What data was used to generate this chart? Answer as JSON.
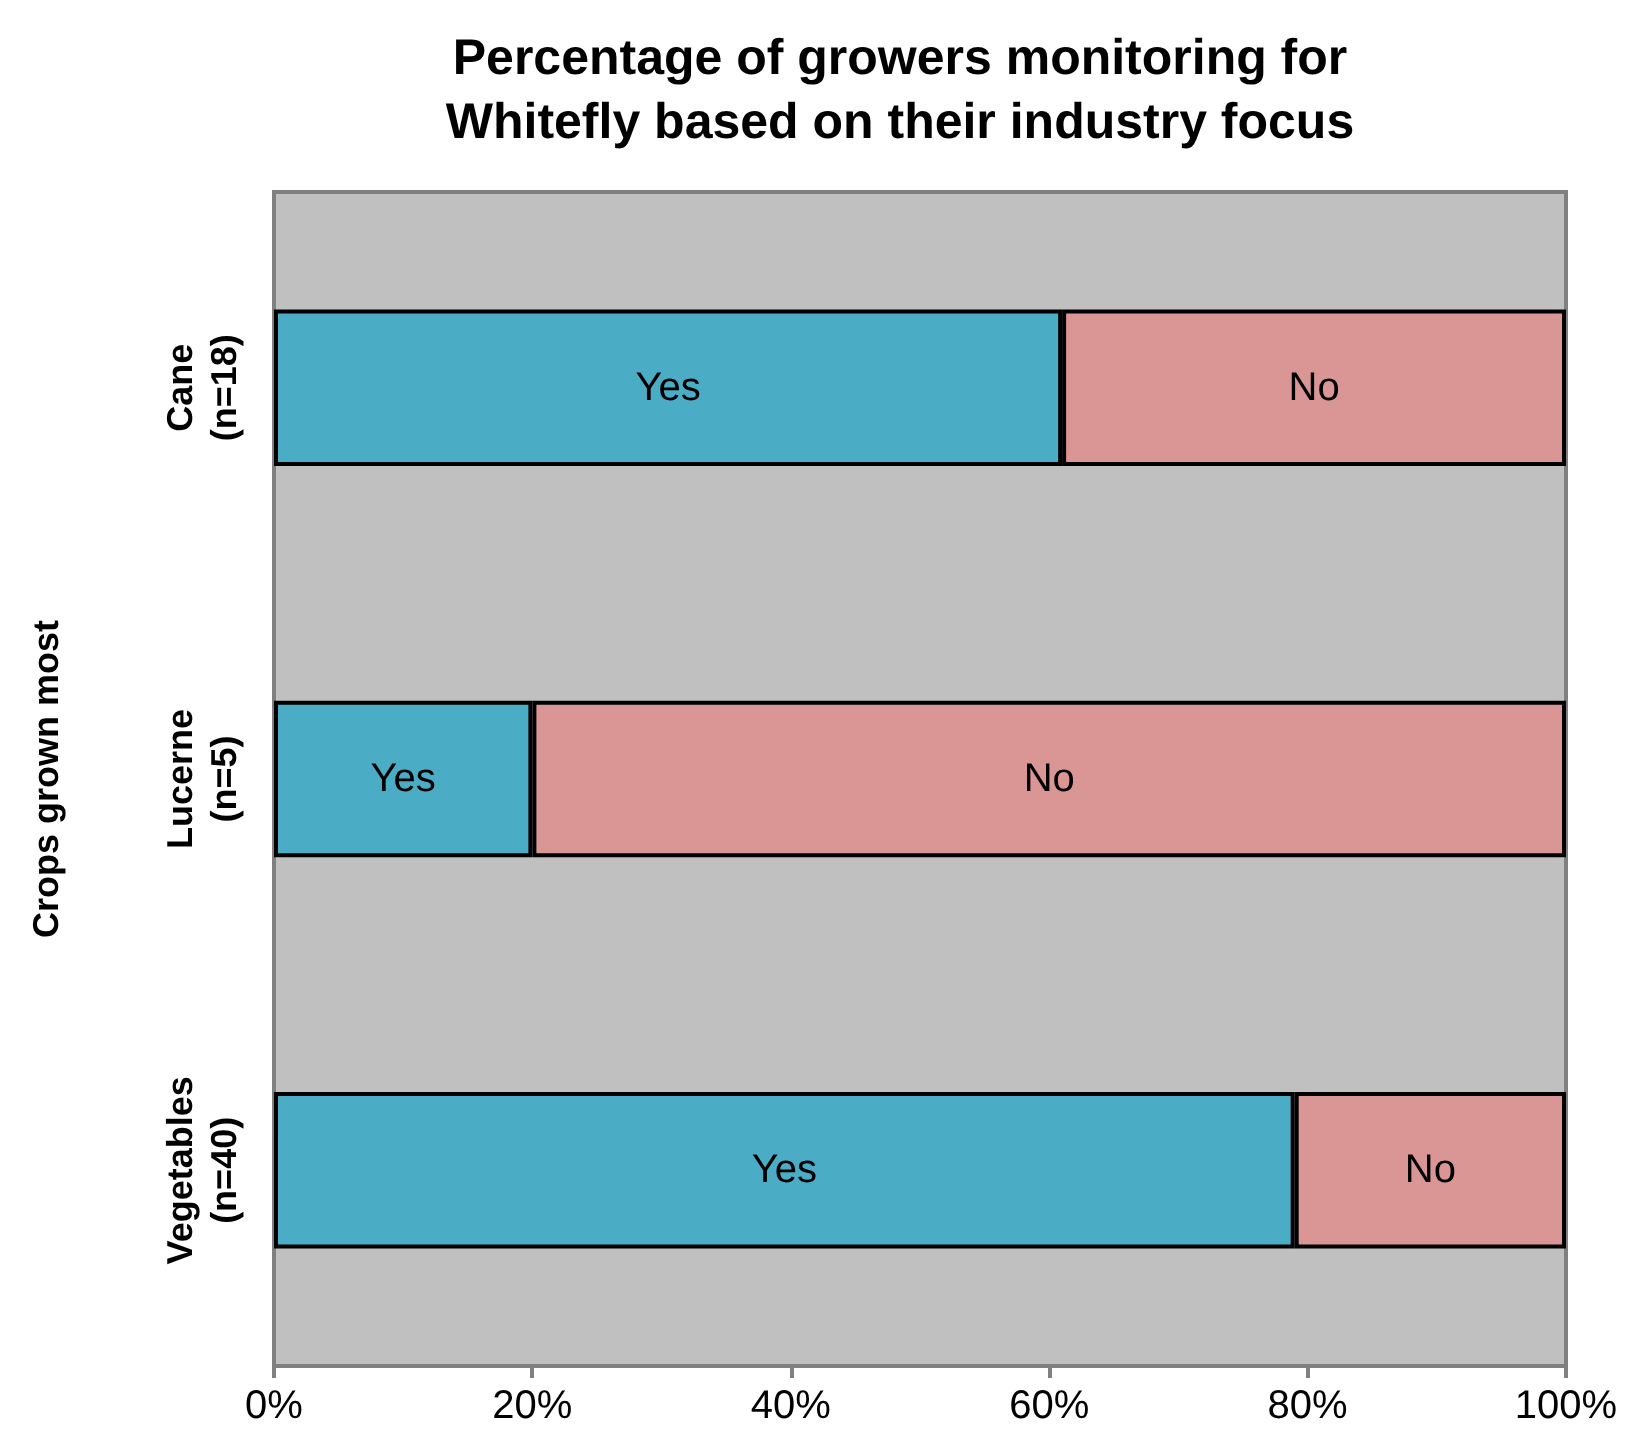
{
  "chart_data": {
    "type": "bar",
    "orientation": "horizontal",
    "stacked": true,
    "title": "Percentage of growers monitoring for\nWhitefly based on their industry focus",
    "ylabel": "Crops grown most",
    "categories": [
      "Cane\n(n=18)",
      "Lucerne\n(n=5)",
      "Vegetables\n(n=40)"
    ],
    "series": [
      {
        "name": "Yes",
        "color": "#4bacc6",
        "values": [
          61,
          20,
          79
        ]
      },
      {
        "name": "No",
        "color": "#d99694",
        "values": [
          39,
          80,
          21
        ]
      }
    ],
    "xlim": [
      0,
      100
    ],
    "xticks": [
      {
        "value": 0,
        "label": "0%"
      },
      {
        "value": 20,
        "label": "20%"
      },
      {
        "value": 40,
        "label": "40%"
      },
      {
        "value": 60,
        "label": "60%"
      },
      {
        "value": 80,
        "label": "80%"
      },
      {
        "value": 100,
        "label": "100%"
      }
    ],
    "grid": false,
    "legend": false
  }
}
